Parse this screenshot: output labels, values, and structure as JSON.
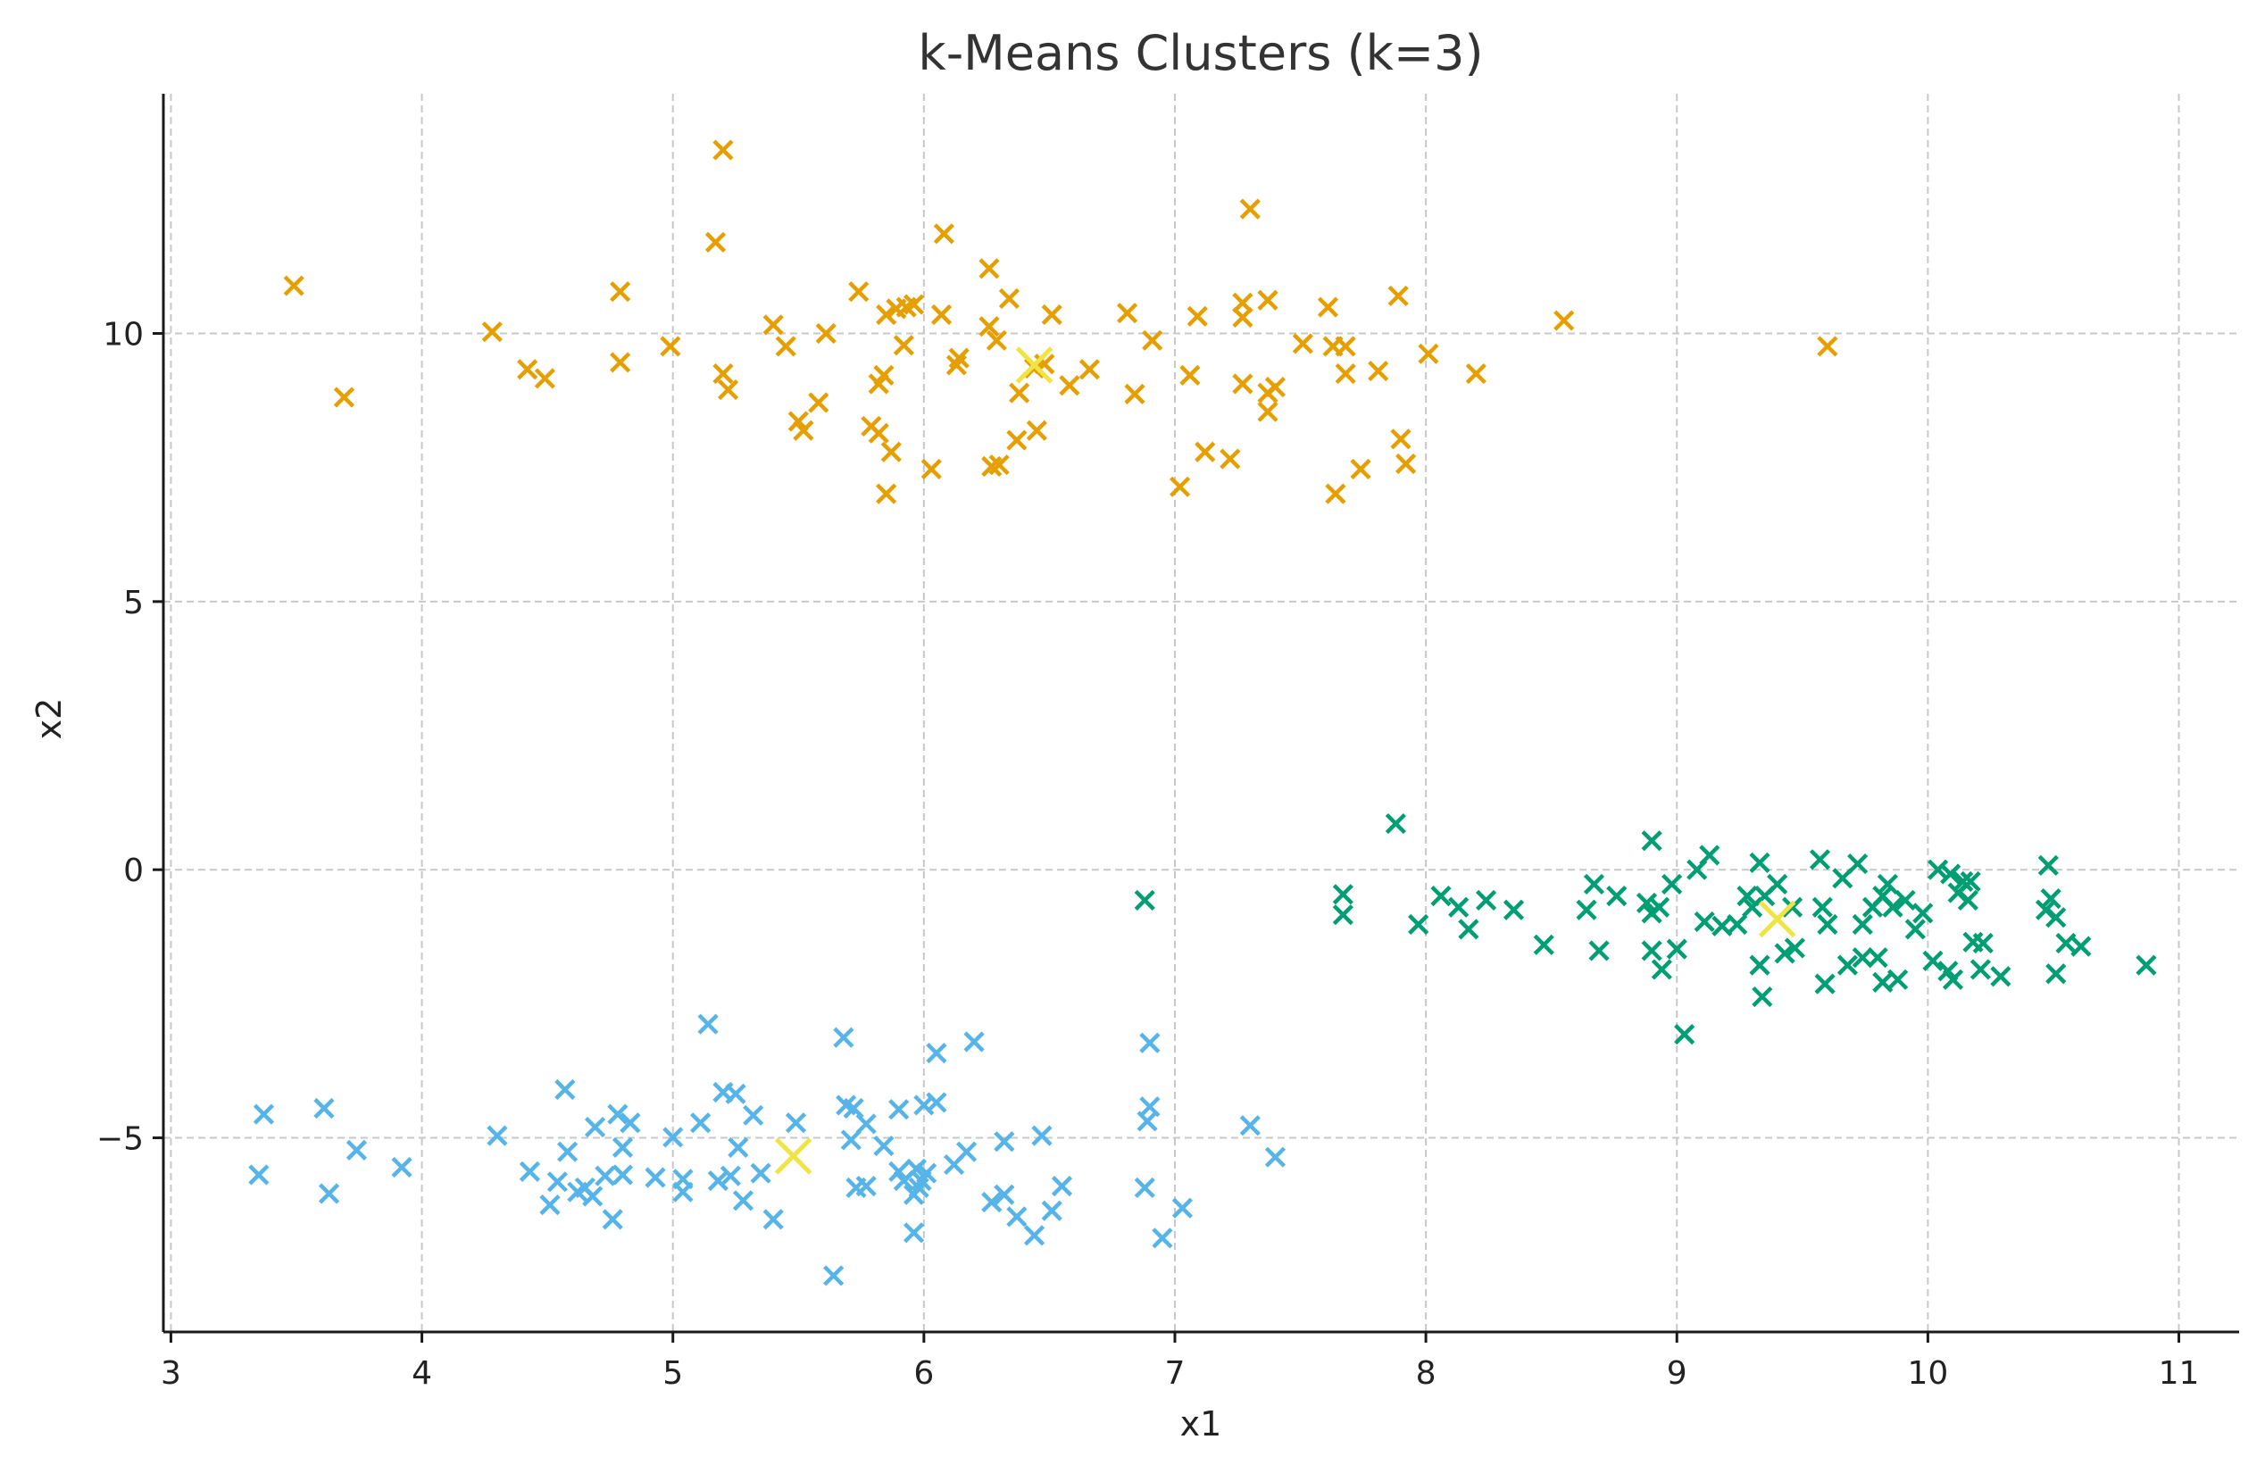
{
  "chart_data": {
    "type": "scatter",
    "title": "k-Means Clusters (k=3)",
    "xlabel": "x1",
    "ylabel": "x2",
    "xlim": [
      2.97,
      11.24
    ],
    "ylim": [
      -8.62,
      14.47
    ],
    "xticks": [
      3,
      4,
      5,
      6,
      7,
      8,
      9,
      10,
      11
    ],
    "yticks": [
      -5,
      0,
      5,
      10
    ],
    "ytick_labels": [
      "−5",
      "0",
      "5",
      "10"
    ],
    "grid": true,
    "marker": "x",
    "series": [
      {
        "color": "#E69F00",
        "points": [
          [
            3.49,
            10.89
          ],
          [
            3.69,
            8.81
          ],
          [
            4.28,
            10.03
          ],
          [
            4.42,
            9.33
          ],
          [
            4.49,
            9.16
          ],
          [
            4.79,
            10.78
          ],
          [
            4.79,
            9.46
          ],
          [
            4.99,
            9.76
          ],
          [
            5.17,
            11.7
          ],
          [
            5.2,
            13.42
          ],
          [
            5.2,
            9.25
          ],
          [
            5.22,
            8.95
          ],
          [
            5.4,
            10.16
          ],
          [
            5.45,
            9.76
          ],
          [
            5.5,
            8.36
          ],
          [
            5.52,
            8.19
          ],
          [
            5.58,
            8.71
          ],
          [
            5.61,
            10.0
          ],
          [
            5.74,
            10.78
          ],
          [
            5.79,
            8.27
          ],
          [
            5.82,
            9.06
          ],
          [
            5.84,
            9.22
          ],
          [
            5.82,
            8.14
          ],
          [
            5.85,
            7.01
          ],
          [
            5.87,
            7.79
          ],
          [
            5.85,
            10.35
          ],
          [
            5.89,
            10.46
          ],
          [
            5.92,
            9.78
          ],
          [
            5.93,
            10.49
          ],
          [
            5.96,
            10.54
          ],
          [
            6.03,
            7.47
          ],
          [
            6.07,
            10.35
          ],
          [
            6.08,
            11.86
          ],
          [
            6.13,
            9.41
          ],
          [
            6.14,
            9.54
          ],
          [
            6.26,
            11.21
          ],
          [
            6.26,
            10.13
          ],
          [
            6.29,
            9.87
          ],
          [
            6.27,
            7.52
          ],
          [
            6.3,
            7.55
          ],
          [
            6.34,
            10.65
          ],
          [
            6.37,
            8.01
          ],
          [
            6.38,
            8.89
          ],
          [
            6.45,
            8.19
          ],
          [
            6.44,
            9.35
          ],
          [
            6.48,
            9.43
          ],
          [
            6.51,
            10.35
          ],
          [
            6.58,
            9.03
          ],
          [
            6.66,
            9.33
          ],
          [
            6.81,
            10.38
          ],
          [
            6.84,
            8.87
          ],
          [
            6.91,
            9.87
          ],
          [
            7.02,
            7.14
          ],
          [
            7.06,
            9.22
          ],
          [
            7.09,
            10.32
          ],
          [
            7.12,
            7.79
          ],
          [
            7.22,
            7.66
          ],
          [
            7.27,
            10.57
          ],
          [
            7.27,
            10.3
          ],
          [
            7.27,
            9.06
          ],
          [
            7.3,
            12.32
          ],
          [
            7.37,
            10.62
          ],
          [
            7.37,
            8.89
          ],
          [
            7.37,
            8.54
          ],
          [
            7.4,
            9.0
          ],
          [
            7.51,
            9.81
          ],
          [
            7.61,
            10.49
          ],
          [
            7.63,
            9.76
          ],
          [
            7.64,
            7.01
          ],
          [
            7.68,
            9.76
          ],
          [
            7.68,
            9.25
          ],
          [
            7.74,
            7.47
          ],
          [
            7.81,
            9.3
          ],
          [
            7.89,
            10.7
          ],
          [
            7.9,
            8.03
          ],
          [
            7.92,
            7.57
          ],
          [
            8.01,
            9.62
          ],
          [
            8.2,
            9.25
          ],
          [
            8.55,
            10.24
          ],
          [
            9.6,
            9.76
          ]
        ]
      },
      {
        "color": "#009E73",
        "points": [
          [
            6.88,
            -0.57
          ],
          [
            7.67,
            -0.46
          ],
          [
            7.67,
            -0.84
          ],
          [
            7.88,
            0.86
          ],
          [
            7.97,
            -1.02
          ],
          [
            8.06,
            -0.49
          ],
          [
            8.13,
            -0.7
          ],
          [
            8.17,
            -1.11
          ],
          [
            8.24,
            -0.57
          ],
          [
            8.35,
            -0.75
          ],
          [
            8.47,
            -1.4
          ],
          [
            8.64,
            -0.75
          ],
          [
            8.67,
            -0.27
          ],
          [
            8.69,
            -1.51
          ],
          [
            8.76,
            -0.49
          ],
          [
            8.9,
            0.54
          ],
          [
            8.88,
            -0.62
          ],
          [
            8.9,
            -0.81
          ],
          [
            8.93,
            -0.7
          ],
          [
            8.9,
            -1.51
          ],
          [
            8.94,
            -1.86
          ],
          [
            8.98,
            -0.27
          ],
          [
            9.0,
            -1.48
          ],
          [
            9.03,
            -3.07
          ],
          [
            9.08,
            0.0
          ],
          [
            9.13,
            0.27
          ],
          [
            9.11,
            -0.97
          ],
          [
            9.18,
            -1.05
          ],
          [
            9.24,
            -1.02
          ],
          [
            9.28,
            -0.49
          ],
          [
            9.3,
            -0.7
          ],
          [
            9.33,
            0.13
          ],
          [
            9.33,
            -1.78
          ],
          [
            9.34,
            -2.37
          ],
          [
            9.35,
            -0.49
          ],
          [
            9.4,
            -0.27
          ],
          [
            9.43,
            -1.56
          ],
          [
            9.46,
            -0.7
          ],
          [
            9.47,
            -1.46
          ],
          [
            9.57,
            0.19
          ],
          [
            9.58,
            -0.7
          ],
          [
            9.6,
            -1.02
          ],
          [
            9.59,
            -2.13
          ],
          [
            9.66,
            -0.16
          ],
          [
            9.68,
            -1.78
          ],
          [
            9.72,
            0.11
          ],
          [
            9.74,
            -1.02
          ],
          [
            9.74,
            -1.64
          ],
          [
            9.78,
            -0.7
          ],
          [
            9.82,
            -0.49
          ],
          [
            9.82,
            -2.1
          ],
          [
            9.8,
            -1.64
          ],
          [
            9.84,
            -0.27
          ],
          [
            9.86,
            -0.7
          ],
          [
            9.88,
            -2.05
          ],
          [
            9.91,
            -0.57
          ],
          [
            9.95,
            -1.11
          ],
          [
            9.98,
            -0.81
          ],
          [
            10.02,
            -1.7
          ],
          [
            10.04,
            0.0
          ],
          [
            10.08,
            -1.89
          ],
          [
            10.09,
            -0.08
          ],
          [
            10.1,
            -2.05
          ],
          [
            10.12,
            -0.43
          ],
          [
            10.14,
            -0.22
          ],
          [
            10.16,
            -0.57
          ],
          [
            10.17,
            -0.22
          ],
          [
            10.18,
            -1.35
          ],
          [
            10.21,
            -1.86
          ],
          [
            10.22,
            -1.37
          ],
          [
            10.29,
            -1.99
          ],
          [
            10.47,
            -0.75
          ],
          [
            10.48,
            0.08
          ],
          [
            10.49,
            -0.54
          ],
          [
            10.51,
            -0.89
          ],
          [
            10.51,
            -1.94
          ],
          [
            10.55,
            -1.37
          ],
          [
            10.61,
            -1.43
          ],
          [
            10.87,
            -1.78
          ]
        ]
      },
      {
        "color": "#56B4E9",
        "points": [
          [
            3.35,
            -5.69
          ],
          [
            3.37,
            -4.56
          ],
          [
            3.61,
            -4.45
          ],
          [
            3.63,
            -6.04
          ],
          [
            3.74,
            -5.23
          ],
          [
            3.92,
            -5.55
          ],
          [
            4.3,
            -4.96
          ],
          [
            4.43,
            -5.63
          ],
          [
            4.51,
            -6.25
          ],
          [
            4.54,
            -5.82
          ],
          [
            4.57,
            -4.1
          ],
          [
            4.58,
            -5.26
          ],
          [
            4.62,
            -6.01
          ],
          [
            4.65,
            -5.93
          ],
          [
            4.68,
            -6.09
          ],
          [
            4.69,
            -4.8
          ],
          [
            4.73,
            -5.71
          ],
          [
            4.76,
            -6.52
          ],
          [
            4.78,
            -4.56
          ],
          [
            4.8,
            -5.18
          ],
          [
            4.8,
            -5.69
          ],
          [
            4.83,
            -4.72
          ],
          [
            4.93,
            -5.74
          ],
          [
            5.0,
            -4.99
          ],
          [
            5.04,
            -6.01
          ],
          [
            5.04,
            -5.77
          ],
          [
            5.11,
            -4.72
          ],
          [
            5.14,
            -2.88
          ],
          [
            5.18,
            -5.8
          ],
          [
            5.2,
            -4.15
          ],
          [
            5.23,
            -5.71
          ],
          [
            5.25,
            -4.18
          ],
          [
            5.26,
            -5.18
          ],
          [
            5.28,
            -6.17
          ],
          [
            5.32,
            -4.58
          ],
          [
            5.35,
            -5.66
          ],
          [
            5.4,
            -6.52
          ],
          [
            5.49,
            -4.72
          ],
          [
            5.64,
            -7.57
          ],
          [
            5.68,
            -3.13
          ],
          [
            5.69,
            -4.39
          ],
          [
            5.71,
            -5.04
          ],
          [
            5.72,
            -4.45
          ],
          [
            5.73,
            -5.93
          ],
          [
            5.77,
            -5.9
          ],
          [
            5.77,
            -4.74
          ],
          [
            5.84,
            -5.15
          ],
          [
            5.9,
            -4.47
          ],
          [
            5.9,
            -5.63
          ],
          [
            5.92,
            -5.8
          ],
          [
            5.96,
            -6.06
          ],
          [
            5.96,
            -6.77
          ],
          [
            5.97,
            -5.58
          ],
          [
            5.98,
            -5.93
          ],
          [
            5.99,
            -5.8
          ],
          [
            6.0,
            -4.39
          ],
          [
            6.01,
            -5.66
          ],
          [
            6.05,
            -4.34
          ],
          [
            6.05,
            -3.42
          ],
          [
            6.12,
            -5.5
          ],
          [
            6.17,
            -5.26
          ],
          [
            6.2,
            -3.21
          ],
          [
            6.27,
            -6.2
          ],
          [
            6.32,
            -5.07
          ],
          [
            6.32,
            -6.06
          ],
          [
            6.37,
            -6.47
          ],
          [
            6.44,
            -6.82
          ],
          [
            6.47,
            -4.96
          ],
          [
            6.51,
            -6.36
          ],
          [
            6.55,
            -5.9
          ],
          [
            6.88,
            -5.93
          ],
          [
            6.89,
            -4.69
          ],
          [
            6.9,
            -4.42
          ],
          [
            6.9,
            -3.23
          ],
          [
            6.95,
            -6.87
          ],
          [
            7.03,
            -6.31
          ],
          [
            7.3,
            -4.77
          ],
          [
            7.4,
            -5.36
          ]
        ]
      }
    ],
    "centroids": {
      "color": "#F0E442",
      "points": [
        [
          6.44,
          9.41
        ],
        [
          9.4,
          -0.92
        ],
        [
          5.48,
          -5.34
        ]
      ]
    }
  }
}
